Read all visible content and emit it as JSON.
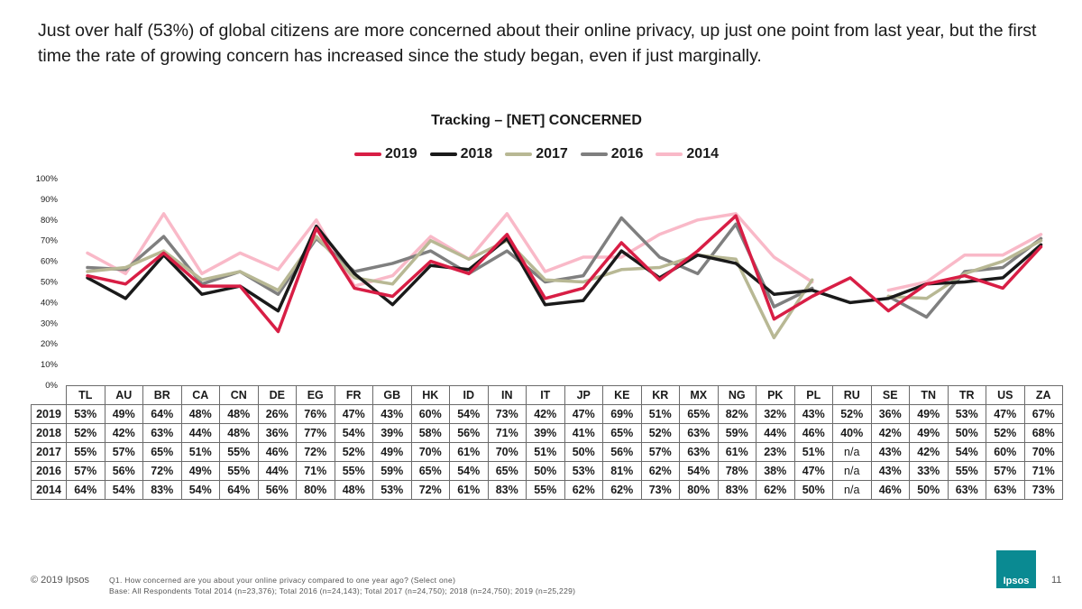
{
  "headline": "Just over half (53%) of global citizens are more concerned about their online privacy, up just one point from last year, but the first time the rate of growing concern has increased since the study began, even if just marginally.",
  "chart_data": {
    "type": "line",
    "title": "Tracking – [NET] CONCERNED",
    "categories": [
      "TL",
      "AU",
      "BR",
      "CA",
      "CN",
      "DE",
      "EG",
      "FR",
      "GB",
      "HK",
      "ID",
      "IN",
      "IT",
      "JP",
      "KE",
      "KR",
      "MX",
      "NG",
      "PK",
      "PL",
      "RU",
      "SE",
      "TN",
      "TR",
      "US",
      "ZA"
    ],
    "ylim": [
      0,
      100
    ],
    "yticks": [
      "0%",
      "10%",
      "20%",
      "30%",
      "40%",
      "50%",
      "60%",
      "70%",
      "80%",
      "90%",
      "100%"
    ],
    "legend_position": "top",
    "series": [
      {
        "name": "2019",
        "color": "#d81e45",
        "values": [
          53,
          49,
          64,
          48,
          48,
          26,
          76,
          47,
          43,
          60,
          54,
          73,
          42,
          47,
          69,
          51,
          65,
          82,
          32,
          43,
          52,
          36,
          49,
          53,
          47,
          67
        ],
        "labels": [
          "53%",
          "49%",
          "64%",
          "48%",
          "48%",
          "26%",
          "76%",
          "47%",
          "43%",
          "60%",
          "54%",
          "73%",
          "42%",
          "47%",
          "69%",
          "51%",
          "65%",
          "82%",
          "32%",
          "43%",
          "52%",
          "36%",
          "49%",
          "53%",
          "47%",
          "67%"
        ]
      },
      {
        "name": "2018",
        "color": "#1a1a1a",
        "values": [
          52,
          42,
          63,
          44,
          48,
          36,
          77,
          54,
          39,
          58,
          56,
          71,
          39,
          41,
          65,
          52,
          63,
          59,
          44,
          46,
          40,
          42,
          49,
          50,
          52,
          68
        ],
        "labels": [
          "52%",
          "42%",
          "63%",
          "44%",
          "48%",
          "36%",
          "77%",
          "54%",
          "39%",
          "58%",
          "56%",
          "71%",
          "39%",
          "41%",
          "65%",
          "52%",
          "63%",
          "59%",
          "44%",
          "46%",
          "40%",
          "42%",
          "49%",
          "50%",
          "52%",
          "68%"
        ]
      },
      {
        "name": "2017",
        "color": "#b8b894",
        "values": [
          55,
          57,
          65,
          51,
          55,
          46,
          72,
          52,
          49,
          70,
          61,
          70,
          51,
          50,
          56,
          57,
          63,
          61,
          23,
          51,
          null,
          43,
          42,
          54,
          60,
          70
        ],
        "labels": [
          "55%",
          "57%",
          "65%",
          "51%",
          "55%",
          "46%",
          "72%",
          "52%",
          "49%",
          "70%",
          "61%",
          "70%",
          "51%",
          "50%",
          "56%",
          "57%",
          "63%",
          "61%",
          "23%",
          "51%",
          "n/a",
          "43%",
          "42%",
          "54%",
          "60%",
          "70%"
        ]
      },
      {
        "name": "2016",
        "color": "#7f7f7f",
        "values": [
          57,
          56,
          72,
          49,
          55,
          44,
          71,
          55,
          59,
          65,
          54,
          65,
          50,
          53,
          81,
          62,
          54,
          78,
          38,
          47,
          null,
          43,
          33,
          55,
          57,
          71
        ],
        "labels": [
          "57%",
          "56%",
          "72%",
          "49%",
          "55%",
          "44%",
          "71%",
          "55%",
          "59%",
          "65%",
          "54%",
          "65%",
          "50%",
          "53%",
          "81%",
          "62%",
          "54%",
          "78%",
          "38%",
          "47%",
          "n/a",
          "43%",
          "33%",
          "55%",
          "57%",
          "71%"
        ]
      },
      {
        "name": "2014",
        "color": "#f9b9c8",
        "values": [
          64,
          54,
          83,
          54,
          64,
          56,
          80,
          48,
          53,
          72,
          61,
          83,
          55,
          62,
          62,
          73,
          80,
          83,
          62,
          50,
          null,
          46,
          50,
          63,
          63,
          73
        ],
        "labels": [
          "64%",
          "54%",
          "83%",
          "54%",
          "64%",
          "56%",
          "80%",
          "48%",
          "53%",
          "72%",
          "61%",
          "83%",
          "55%",
          "62%",
          "62%",
          "73%",
          "80%",
          "83%",
          "62%",
          "50%",
          "n/a",
          "46%",
          "50%",
          "63%",
          "63%",
          "73%"
        ]
      }
    ]
  },
  "footer": {
    "copyright": "© 2019 Ipsos",
    "question": "Q1. How concerned are you about your online privacy compared to one year ago? (Select one)",
    "base": "Base: All Respondents Total  2014 (n=23,376); Total 2016 (n=24,143); Total 2017 (n=24,750); 2018 (n=24,750); 2019 (n=25,229)",
    "logo_text": "Ipsos",
    "page_number": "11"
  }
}
